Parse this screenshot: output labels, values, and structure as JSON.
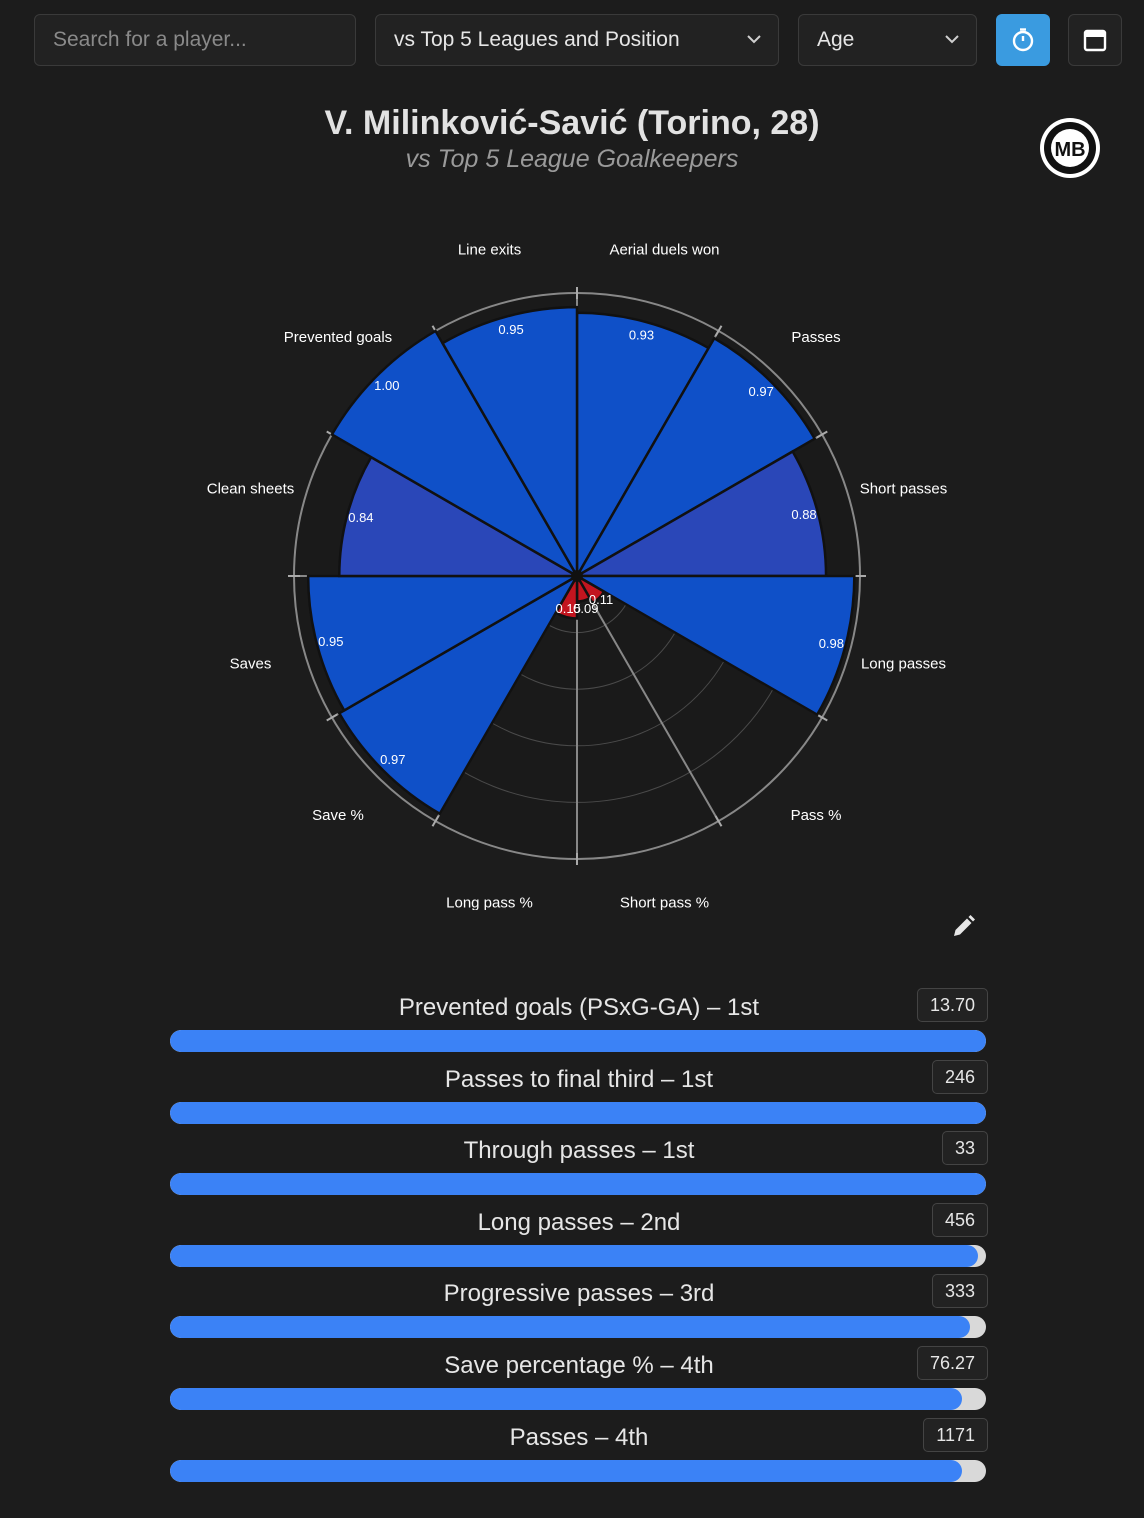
{
  "search": {
    "placeholder": "Search for a player..."
  },
  "filters": {
    "comparison": "vs Top 5 Leagues and Position",
    "age": "Age"
  },
  "toolbar": {
    "timer_icon": "stopwatch-icon",
    "calendar_icon": "calendar-icon",
    "accent": "#3a9be0"
  },
  "header": {
    "title": "V. Milinković-Savić (Torino, 28)",
    "subtitle": "vs Top 5 League Goalkeepers",
    "logo_text": "MB"
  },
  "chart_data": {
    "type": "polar-bar",
    "categories": [
      "Aerial duels won",
      "Passes",
      "Short passes",
      "Long passes",
      "Pass %",
      "Short pass %",
      "Long pass %",
      "Save %",
      "Saves",
      "Clean sheets",
      "Prevented goals",
      "Line exits"
    ],
    "values": [
      0.93,
      0.97,
      0.88,
      0.98,
      0.11,
      0.09,
      0.15,
      0.97,
      0.95,
      0.84,
      1.0,
      0.95
    ],
    "value_labels": [
      "0.93",
      "0.97",
      "0.88",
      "0.98",
      "0.11",
      "0.09",
      "0.15",
      "0.97",
      "0.95",
      "0.84",
      "1.00",
      "0.95"
    ],
    "rlim": [
      0,
      1
    ],
    "grid": true,
    "colors": {
      "high": "#0f50c8",
      "mid": "#2a47b8",
      "low": "#c2151f"
    }
  },
  "stats": [
    {
      "label": "Prevented goals (PSxG-GA) – 1st",
      "value": "13.70",
      "fill": 1.0
    },
    {
      "label": "Passes to final third – 1st",
      "value": "246",
      "fill": 1.0
    },
    {
      "label": "Through passes – 1st",
      "value": "33",
      "fill": 1.0
    },
    {
      "label": "Long passes – 2nd",
      "value": "456",
      "fill": 0.99
    },
    {
      "label": "Progressive passes – 3rd",
      "value": "333",
      "fill": 0.98
    },
    {
      "label": "Save percentage % – 4th",
      "value": "76.27",
      "fill": 0.97
    },
    {
      "label": "Passes – 4th",
      "value": "1171",
      "fill": 0.97
    }
  ],
  "colors": {
    "background": "#1c1c1c",
    "bar_fill": "#3b82f6",
    "bar_track": "#d9d9d9"
  }
}
